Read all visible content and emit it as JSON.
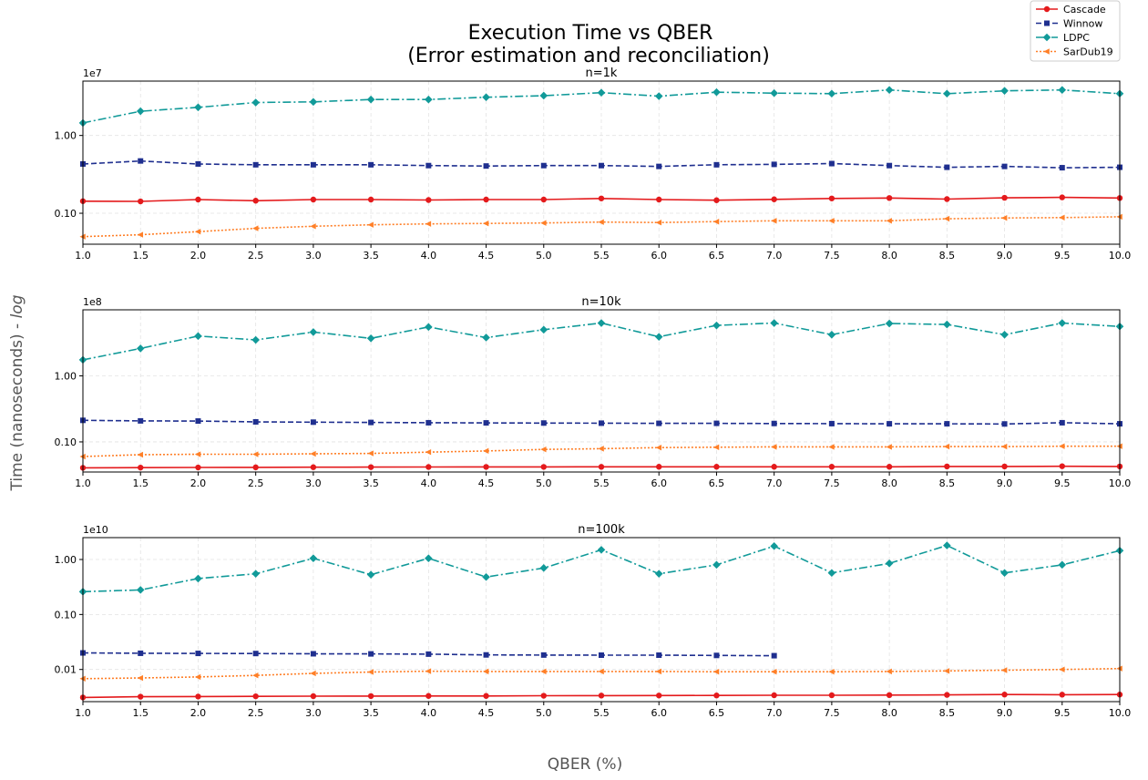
{
  "figure": {
    "title_line1": "Execution Time vs QBER",
    "title_line2": "(Error estimation and reconciliation)",
    "xlabel": "QBER (%)",
    "ylabel_main": "Time (nanoseconds) - ",
    "ylabel_italic": "log",
    "legend": [
      {
        "name": "Cascade",
        "color": "#e41a1c",
        "marker": "circle",
        "dash": "solid"
      },
      {
        "name": "Winnow",
        "color": "#1f2f8f",
        "marker": "square",
        "dash": "dashed"
      },
      {
        "name": "LDPC",
        "color": "#119a99",
        "marker": "diamond",
        "dash": "dashdot"
      },
      {
        "name": "SarDub19",
        "color": "#ff7f27",
        "marker": "triangle-left",
        "dash": "dotted"
      }
    ]
  },
  "chart_data": [
    {
      "type": "line",
      "title": "n=1k",
      "scale_label": "1e7",
      "yscale": "log",
      "ylim": [
        0.04,
        5.0
      ],
      "yticks": [
        1.0,
        0.1
      ],
      "ytick_labels": [
        "1.00",
        "0.10"
      ],
      "xlim": [
        1.0,
        10.0
      ],
      "x": [
        1.0,
        1.5,
        2.0,
        2.5,
        3.0,
        3.5,
        4.0,
        4.5,
        5.0,
        5.5,
        6.0,
        6.5,
        7.0,
        7.5,
        8.0,
        8.5,
        9.0,
        9.5,
        10.0
      ],
      "xtick_labels": [
        "1.0",
        "1.5",
        "2.0",
        "2.5",
        "3.0",
        "3.5",
        "4.0",
        "4.5",
        "5.0",
        "5.5",
        "6.0",
        "6.5",
        "7.0",
        "7.5",
        "8.0",
        "8.5",
        "9.0",
        "9.5",
        "10.0"
      ],
      "grid": true,
      "series": [
        {
          "name": "LDPC",
          "values": [
            1.45,
            2.05,
            2.3,
            2.65,
            2.7,
            2.9,
            2.9,
            3.1,
            3.25,
            3.55,
            3.2,
            3.6,
            3.5,
            3.45,
            3.85,
            3.45,
            3.75,
            3.85,
            3.45
          ]
        },
        {
          "name": "Winnow",
          "values": [
            0.43,
            0.47,
            0.43,
            0.42,
            0.42,
            0.42,
            0.41,
            0.405,
            0.41,
            0.41,
            0.4,
            0.42,
            0.425,
            0.435,
            0.41,
            0.39,
            0.4,
            0.385,
            0.39
          ]
        },
        {
          "name": "Cascade",
          "values": [
            0.143,
            0.142,
            0.15,
            0.145,
            0.15,
            0.15,
            0.148,
            0.15,
            0.15,
            0.155,
            0.15,
            0.147,
            0.151,
            0.155,
            0.157,
            0.152,
            0.158,
            0.16,
            0.157
          ]
        },
        {
          "name": "SarDub19",
          "values": [
            0.05,
            0.053,
            0.058,
            0.064,
            0.068,
            0.071,
            0.073,
            0.074,
            0.075,
            0.077,
            0.076,
            0.078,
            0.08,
            0.08,
            0.08,
            0.085,
            0.087,
            0.088,
            0.09
          ]
        }
      ]
    },
    {
      "type": "line",
      "title": "n=10k",
      "scale_label": "1e8",
      "yscale": "log",
      "ylim": [
        0.035,
        10.0
      ],
      "yticks": [
        1.0,
        0.1
      ],
      "ytick_labels": [
        "1.00",
        "0.10"
      ],
      "xlim": [
        1.0,
        10.0
      ],
      "x": [
        1.0,
        1.5,
        2.0,
        2.5,
        3.0,
        3.5,
        4.0,
        4.5,
        5.0,
        5.5,
        6.0,
        6.5,
        7.0,
        7.5,
        8.0,
        8.5,
        9.0,
        9.5,
        10.0
      ],
      "xtick_labels": [
        "1.0",
        "1.5",
        "2.0",
        "2.5",
        "3.0",
        "3.5",
        "4.0",
        "4.5",
        "5.0",
        "5.5",
        "6.0",
        "6.5",
        "7.0",
        "7.5",
        "8.0",
        "8.5",
        "9.0",
        "9.5",
        "10.0"
      ],
      "grid": true,
      "series": [
        {
          "name": "LDPC",
          "values": [
            1.75,
            2.6,
            4.0,
            3.5,
            4.6,
            3.7,
            5.5,
            3.8,
            5.0,
            6.3,
            3.9,
            5.8,
            6.3,
            4.2,
            6.2,
            6.0,
            4.2,
            6.3,
            5.6
          ]
        },
        {
          "name": "Winnow",
          "values": [
            0.212,
            0.208,
            0.207,
            0.201,
            0.199,
            0.197,
            0.195,
            0.194,
            0.193,
            0.192,
            0.191,
            0.191,
            0.19,
            0.189,
            0.188,
            0.188,
            0.187,
            0.195,
            0.188
          ]
        },
        {
          "name": "SarDub19",
          "values": [
            0.06,
            0.064,
            0.065,
            0.065,
            0.066,
            0.067,
            0.07,
            0.073,
            0.077,
            0.079,
            0.082,
            0.083,
            0.084,
            0.084,
            0.084,
            0.085,
            0.085,
            0.086,
            0.086
          ]
        },
        {
          "name": "Cascade",
          "values": [
            0.0405,
            0.0408,
            0.041,
            0.0412,
            0.0414,
            0.0415,
            0.0417,
            0.0418,
            0.0418,
            0.0419,
            0.042,
            0.042,
            0.042,
            0.042,
            0.042,
            0.0425,
            0.0425,
            0.0428,
            0.0425
          ]
        }
      ]
    },
    {
      "type": "line",
      "title": "n=100k",
      "scale_label": "1e10",
      "yscale": "log",
      "ylim": [
        0.0026,
        2.5
      ],
      "yticks": [
        1.0,
        0.1,
        0.01
      ],
      "ytick_labels": [
        "1.00",
        "0.10",
        "0.01"
      ],
      "xlim": [
        1.0,
        10.0
      ],
      "x": [
        1.0,
        1.5,
        2.0,
        2.5,
        3.0,
        3.5,
        4.0,
        4.5,
        5.0,
        5.5,
        6.0,
        6.5,
        7.0,
        7.5,
        8.0,
        8.5,
        9.0,
        9.5,
        10.0
      ],
      "xtick_labels": [
        "1.0",
        "1.5",
        "2.0",
        "2.5",
        "3.0",
        "3.5",
        "4.0",
        "4.5",
        "5.0",
        "5.5",
        "6.0",
        "6.5",
        "7.0",
        "7.5",
        "8.0",
        "8.5",
        "9.0",
        "9.5",
        "10.0"
      ],
      "grid": true,
      "series": [
        {
          "name": "LDPC",
          "values": [
            0.26,
            0.28,
            0.45,
            0.55,
            1.05,
            0.53,
            1.05,
            0.48,
            0.7,
            1.5,
            0.55,
            0.8,
            1.75,
            0.57,
            0.85,
            1.8,
            0.57,
            0.8,
            1.45
          ]
        },
        {
          "name": "Winnow",
          "values": [
            0.02,
            0.0197,
            0.0196,
            0.0195,
            0.0193,
            0.0192,
            0.019,
            0.0184,
            0.0183,
            0.0182,
            0.0182,
            0.018,
            0.0178,
            null,
            null,
            null,
            null,
            null,
            null
          ]
        },
        {
          "name": "SarDub19",
          "values": [
            0.0068,
            0.007,
            0.0073,
            0.0078,
            0.0085,
            0.009,
            0.0093,
            0.0092,
            0.0092,
            0.0092,
            0.0092,
            0.0091,
            0.0091,
            0.0091,
            0.0092,
            0.0094,
            0.0097,
            0.01,
            0.0104
          ]
        },
        {
          "name": "Cascade",
          "values": [
            0.0031,
            0.0032,
            0.00322,
            0.00325,
            0.00327,
            0.00328,
            0.0033,
            0.0033,
            0.00333,
            0.00335,
            0.00336,
            0.00337,
            0.0034,
            0.0034,
            0.00342,
            0.00345,
            0.0035,
            0.00348,
            0.0035
          ]
        }
      ]
    }
  ]
}
